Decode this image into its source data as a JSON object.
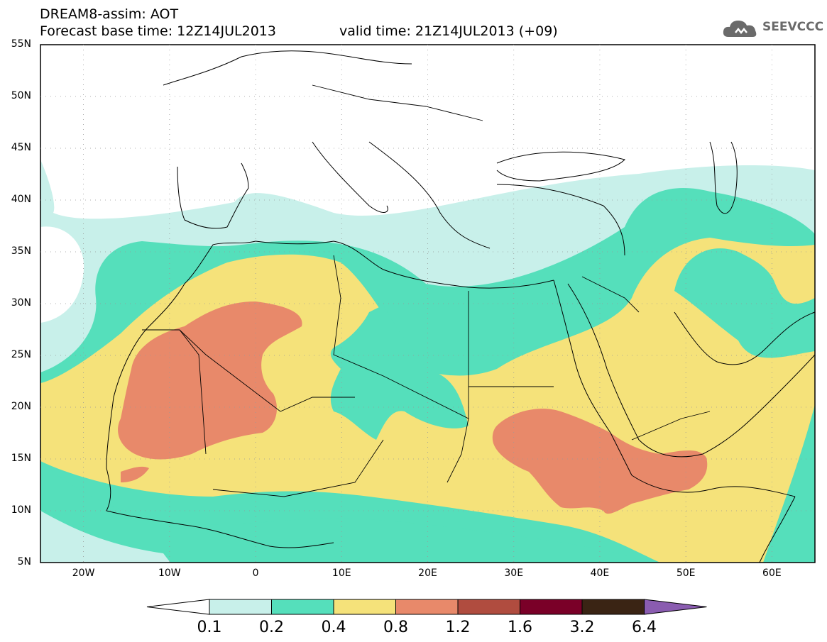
{
  "header": {
    "title": "DREAM8-assim: AOT",
    "base_time": "Forecast base time: 12Z14JUL2013",
    "valid_time": "valid time: 21Z14JUL2013 (+09)"
  },
  "logo": {
    "text": "SEEVCCC",
    "icon": "cloud-icon"
  },
  "axes": {
    "lat_labels": [
      "55N",
      "50N",
      "45N",
      "40N",
      "35N",
      "30N",
      "25N",
      "20N",
      "15N",
      "10N",
      "5N"
    ],
    "lon_labels": [
      "20W",
      "10W",
      "0",
      "10E",
      "20E",
      "30E",
      "40E",
      "50E",
      "60E"
    ]
  },
  "colorbar": {
    "labels": [
      "0.1",
      "0.2",
      "0.4",
      "0.8",
      "1.2",
      "1.6",
      "3.2",
      "6.4"
    ],
    "colors": [
      "#ffffff",
      "#c8f0ea",
      "#55dfbb",
      "#f5e27a",
      "#e8896a",
      "#b04c3f",
      "#7a0028",
      "#3a2414",
      "#8a5cb0"
    ]
  },
  "map_colors": {
    "c02": "#c8f0ea",
    "c04": "#55dfbb",
    "c08": "#f5e27a",
    "c12": "#e8896a"
  }
}
